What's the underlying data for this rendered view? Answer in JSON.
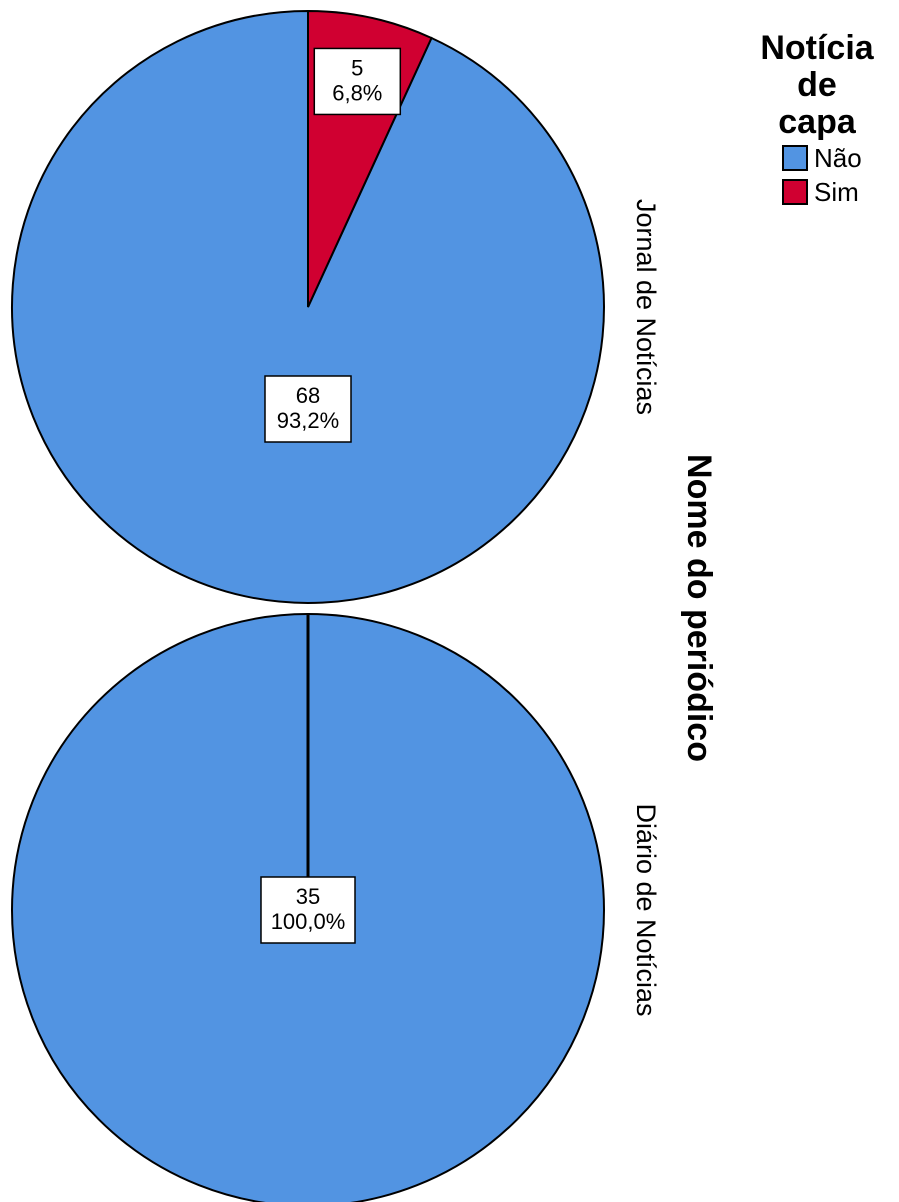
{
  "chart_data": {
    "type": "pie",
    "panel_axis_label": "Nome do periódico",
    "legend": {
      "title_lines": [
        "Notícia",
        "de",
        "capa"
      ],
      "placement": "top-right",
      "entries": [
        {
          "label": "Não",
          "color": "#5294E2"
        },
        {
          "label": "Sim",
          "color": "#D00031"
        }
      ]
    },
    "panels": [
      {
        "name": "Jornal de Notícias",
        "slices": [
          {
            "category": "Não",
            "count": 68,
            "percent_label": "93,2%",
            "percent": 93.2
          },
          {
            "category": "Sim",
            "count": 5,
            "percent_label": "6,8%",
            "percent": 6.8
          }
        ]
      },
      {
        "name": "Diário de Notícias",
        "slices": [
          {
            "category": "Não",
            "count": 35,
            "percent_label": "100,0%",
            "percent": 100.0
          }
        ]
      }
    ]
  }
}
